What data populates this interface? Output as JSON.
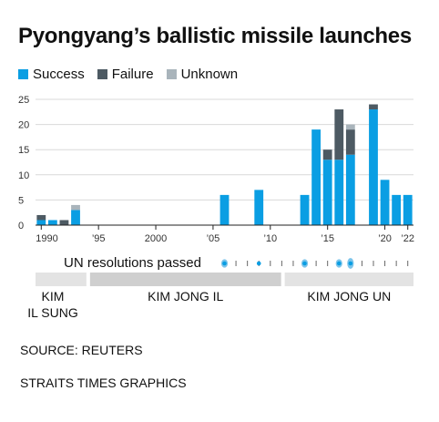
{
  "title": "Pyongyang’s ballistic missile launches",
  "colors": {
    "success": "#0a9ee3",
    "failure": "#4d5a63",
    "unknown": "#a9b4bb"
  },
  "legend": [
    {
      "label": "Success",
      "color": "#0a9ee3"
    },
    {
      "label": "Failure",
      "color": "#4d5a63"
    },
    {
      "label": "Unknown",
      "color": "#a9b4bb"
    }
  ],
  "chart_data": {
    "type": "bar",
    "stacked": true,
    "x": [
      1990,
      1991,
      1992,
      1993,
      1994,
      1995,
      1996,
      1997,
      1998,
      1999,
      2000,
      2001,
      2002,
      2003,
      2004,
      2005,
      2006,
      2007,
      2008,
      2009,
      2010,
      2011,
      2012,
      2013,
      2014,
      2015,
      2016,
      2017,
      2018,
      2019,
      2020,
      2021,
      2022
    ],
    "series": [
      {
        "name": "Success",
        "values": [
          1,
          1,
          0,
          3,
          0,
          0,
          0,
          0,
          0,
          0,
          0,
          0,
          0,
          0,
          0,
          0,
          6,
          0,
          0,
          7,
          0,
          0,
          0,
          6,
          19,
          13,
          13,
          14,
          0,
          23,
          9,
          6,
          6
        ]
      },
      {
        "name": "Failure",
        "values": [
          1,
          0,
          1,
          0,
          0,
          0,
          0,
          0,
          0,
          0,
          0,
          0,
          0,
          0,
          0,
          0,
          0,
          0,
          0,
          0,
          0,
          0,
          0,
          0,
          0,
          2,
          10,
          5,
          0,
          1,
          0,
          0,
          0
        ]
      },
      {
        "name": "Unknown",
        "values": [
          0,
          0,
          0,
          1,
          0,
          0,
          0,
          0,
          0,
          0,
          0,
          0,
          0,
          0,
          0,
          0,
          0,
          0,
          0,
          0,
          0,
          0,
          0,
          0,
          0,
          0,
          0,
          1,
          0,
          0,
          0,
          0,
          0
        ]
      }
    ],
    "ylim": [
      0,
      25
    ],
    "yticks": [
      0,
      5,
      10,
      15,
      20,
      25
    ],
    "xticks": [
      {
        "year": 1990,
        "label": "1990"
      },
      {
        "year": 1995,
        "label": "’95"
      },
      {
        "year": 2000,
        "label": "2000"
      },
      {
        "year": 2005,
        "label": "’05"
      },
      {
        "year": 2010,
        "label": "’10"
      },
      {
        "year": 2015,
        "label": "’15"
      },
      {
        "year": 2020,
        "label": "’20"
      },
      {
        "year": 2022,
        "label": "’22"
      }
    ],
    "grid": true,
    "legend_position": "top-left"
  },
  "un_resolutions": {
    "label": "UN resolutions passed",
    "years": [
      2006,
      2006,
      2009,
      2013,
      2013,
      2016,
      2016,
      2017,
      2017,
      2017
    ]
  },
  "eras": [
    {
      "label": "KIM\nIL SUNG",
      "start": 1990,
      "end": 1994,
      "color": "#e3e3e3"
    },
    {
      "label": "KIM JONG IL",
      "start": 1994,
      "end": 2011,
      "color": "#cfcfcf"
    },
    {
      "label": "KIM JONG UN",
      "start": 2011,
      "end": 2022,
      "color": "#e3e3e3"
    }
  ],
  "source": "SOURCE: REUTERS",
  "credit": "STRAITS TIMES GRAPHICS"
}
